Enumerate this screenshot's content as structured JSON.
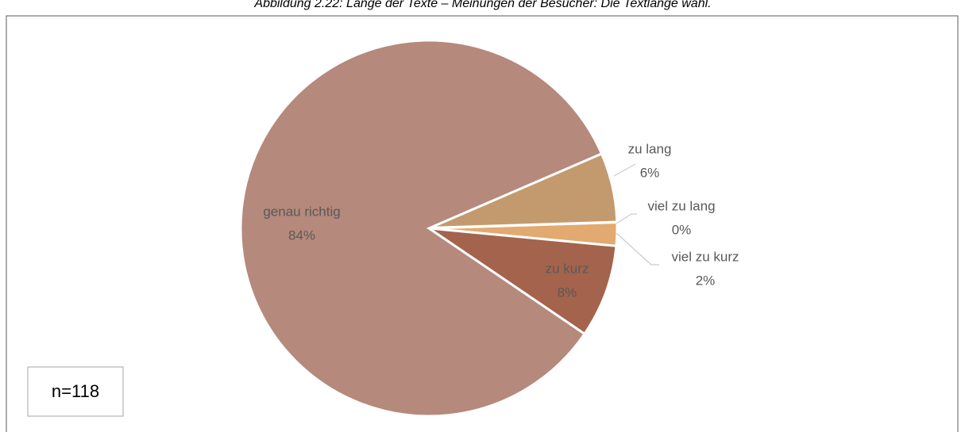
{
  "chart_data": {
    "type": "pie",
    "title": "Abbildung 2.22: Länge der Texte – Meinungen der Besucher: Die Textlänge wähl.",
    "categories": [
      "zu lang",
      "viel zu lang",
      "viel zu kurz",
      "zu kurz",
      "genau richtig"
    ],
    "values": [
      6,
      0,
      2,
      8,
      84
    ],
    "value_labels": [
      "6%",
      "0%",
      "2%",
      "8%",
      "84%"
    ],
    "colors": [
      "#c39a6e",
      "#d9a36c",
      "#e2aa70",
      "#a4634c",
      "#b5897c"
    ],
    "annotation": "n=118"
  }
}
